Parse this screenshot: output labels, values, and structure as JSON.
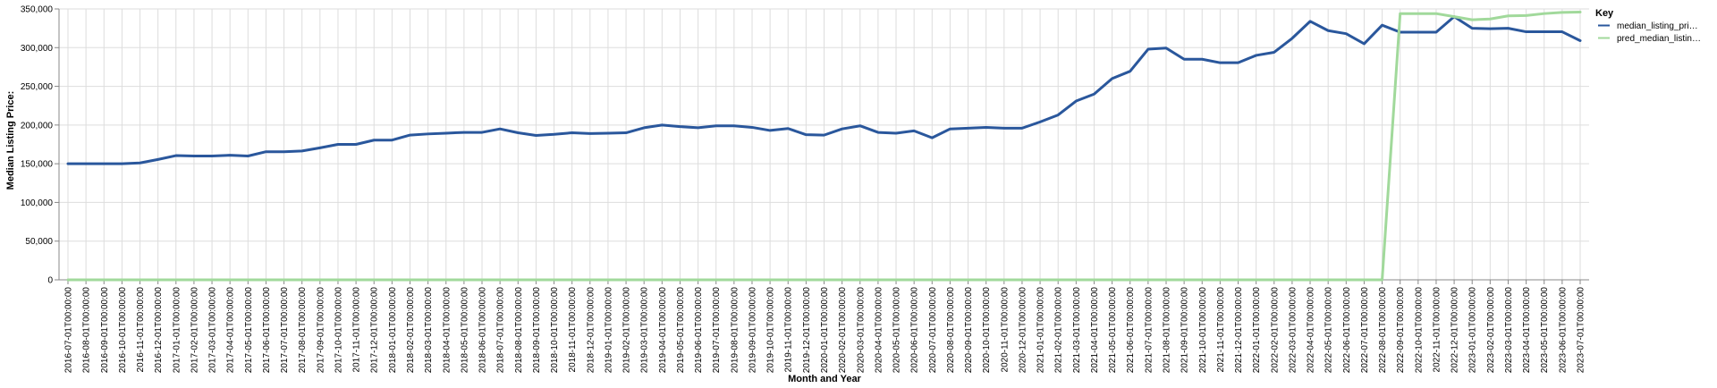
{
  "chart_data": {
    "type": "line",
    "title": "",
    "xlabel": "Month and Year",
    "ylabel": "Median Listing Price:",
    "ylim": [
      0,
      350000
    ],
    "yticks": [
      0,
      50000,
      100000,
      150000,
      200000,
      250000,
      300000,
      350000
    ],
    "ytick_labels": [
      "0",
      "50,000",
      "100,000",
      "150,000",
      "200,000",
      "250,000",
      "300,000",
      "350,000"
    ],
    "grid": true,
    "legend": {
      "title": "Key",
      "placement": "right"
    },
    "x": [
      "2016-07-01T00:00:00",
      "2016-08-01T00:00:00",
      "2016-09-01T00:00:00",
      "2016-10-01T00:00:00",
      "2016-11-01T00:00:00",
      "2016-12-01T00:00:00",
      "2017-01-01T00:00:00",
      "2017-02-01T00:00:00",
      "2017-03-01T00:00:00",
      "2017-04-01T00:00:00",
      "2017-05-01T00:00:00",
      "2017-06-01T00:00:00",
      "2017-07-01T00:00:00",
      "2017-08-01T00:00:00",
      "2017-09-01T00:00:00",
      "2017-10-01T00:00:00",
      "2017-11-01T00:00:00",
      "2017-12-01T00:00:00",
      "2018-01-01T00:00:00",
      "2018-02-01T00:00:00",
      "2018-03-01T00:00:00",
      "2018-04-01T00:00:00",
      "2018-05-01T00:00:00",
      "2018-06-01T00:00:00",
      "2018-07-01T00:00:00",
      "2018-08-01T00:00:00",
      "2018-09-01T00:00:00",
      "2018-10-01T00:00:00",
      "2018-11-01T00:00:00",
      "2018-12-01T00:00:00",
      "2019-01-01T00:00:00",
      "2019-02-01T00:00:00",
      "2019-03-01T00:00:00",
      "2019-04-01T00:00:00",
      "2019-05-01T00:00:00",
      "2019-06-01T00:00:00",
      "2019-07-01T00:00:00",
      "2019-08-01T00:00:00",
      "2019-09-01T00:00:00",
      "2019-10-01T00:00:00",
      "2019-11-01T00:00:00",
      "2019-12-01T00:00:00",
      "2020-01-01T00:00:00",
      "2020-02-01T00:00:00",
      "2020-03-01T00:00:00",
      "2020-04-01T00:00:00",
      "2020-05-01T00:00:00",
      "2020-06-01T00:00:00",
      "2020-07-01T00:00:00",
      "2020-08-01T00:00:00",
      "2020-09-01T00:00:00",
      "2020-10-01T00:00:00",
      "2020-11-01T00:00:00",
      "2020-12-01T00:00:00",
      "2021-01-01T00:00:00",
      "2021-02-01T00:00:00",
      "2021-03-01T00:00:00",
      "2021-04-01T00:00:00",
      "2021-05-01T00:00:00",
      "2021-06-01T00:00:00",
      "2021-07-01T00:00:00",
      "2021-08-01T00:00:00",
      "2021-09-01T00:00:00",
      "2021-10-01T00:00:00",
      "2021-11-01T00:00:00",
      "2021-12-01T00:00:00",
      "2022-01-01T00:00:00",
      "2022-02-01T00:00:00",
      "2022-03-01T00:00:00",
      "2022-04-01T00:00:00",
      "2022-05-01T00:00:00",
      "2022-06-01T00:00:00",
      "2022-07-01T00:00:00",
      "2022-08-01T00:00:00",
      "2022-09-01T00:00:00",
      "2022-10-01T00:00:00",
      "2022-11-01T00:00:00",
      "2022-12-01T00:00:00",
      "2023-01-01T00:00:00",
      "2023-02-01T00:00:00",
      "2023-03-01T00:00:00",
      "2023-04-01T00:00:00",
      "2023-05-01T00:00:00",
      "2023-06-01T00:00:00",
      "2023-07-01T00:00:00"
    ],
    "series": [
      {
        "name": "median_listing_pri…",
        "color": "#2a579c",
        "values": [
          150000,
          150000,
          150000,
          150000,
          151000,
          155500,
          160500,
          160000,
          160000,
          161000,
          160000,
          165500,
          165500,
          166500,
          170500,
          175000,
          175000,
          180500,
          180500,
          187000,
          188500,
          189500,
          190500,
          190500,
          195000,
          190000,
          186500,
          188000,
          190000,
          189000,
          189500,
          190000,
          196500,
          200000,
          198000,
          196500,
          199000,
          199000,
          197000,
          193000,
          195500,
          187500,
          187000,
          195000,
          199000,
          190500,
          189500,
          192500,
          183500,
          195000,
          196000,
          197000,
          196000,
          196000,
          204000,
          213000,
          231000,
          240000,
          260000,
          269500,
          298000,
          299500,
          285000,
          285000,
          280500,
          280500,
          290000,
          294000,
          312000,
          334000,
          322000,
          318000,
          305000,
          329000,
          320000,
          320000,
          320000,
          340000,
          325000,
          324500,
          325000,
          320500,
          320500,
          320500,
          309000
        ]
      },
      {
        "name": "pred_median_listin…",
        "color": "#a1d99b",
        "values": [
          0,
          0,
          0,
          0,
          0,
          0,
          0,
          0,
          0,
          0,
          0,
          0,
          0,
          0,
          0,
          0,
          0,
          0,
          0,
          0,
          0,
          0,
          0,
          0,
          0,
          0,
          0,
          0,
          0,
          0,
          0,
          0,
          0,
          0,
          0,
          0,
          0,
          0,
          0,
          0,
          0,
          0,
          0,
          0,
          0,
          0,
          0,
          0,
          0,
          0,
          0,
          0,
          0,
          0,
          0,
          0,
          0,
          0,
          0,
          0,
          0,
          0,
          0,
          0,
          0,
          0,
          0,
          0,
          0,
          0,
          0,
          0,
          0,
          0,
          344000,
          344000,
          344000,
          340000,
          336000,
          337000,
          341000,
          341500,
          344000,
          345500,
          346000
        ]
      }
    ]
  }
}
